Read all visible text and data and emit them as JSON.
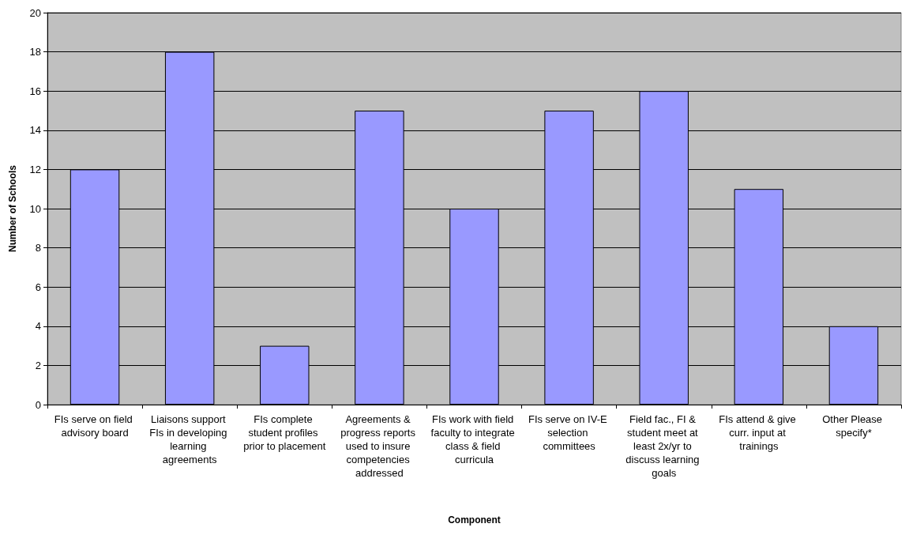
{
  "chart_data": {
    "type": "bar",
    "xlabel": "Component",
    "ylabel": "Number of Schools",
    "categories": [
      "FIs serve on field advisory board",
      "Liaisons support FIs in developing learning agreements",
      "FIs complete student profiles prior to placement",
      "Agreements & progress reports used to insure competencies addressed",
      "FIs work with field faculty to integrate class & field curricula",
      "FIs serve on IV-E selection committees",
      "Field fac., FI & student meet at least 2x/yr to discuss learning goals",
      "FIs attend & give curr. input at trainings",
      "Other Please specify*"
    ],
    "values": [
      12,
      18,
      3,
      15,
      10,
      15,
      16,
      11,
      4
    ],
    "color": "#9999ff",
    "ylim": [
      0,
      20
    ],
    "yticks": [
      0,
      2,
      4,
      6,
      8,
      10,
      12,
      14,
      16,
      18,
      20
    ],
    "grid": "y"
  }
}
